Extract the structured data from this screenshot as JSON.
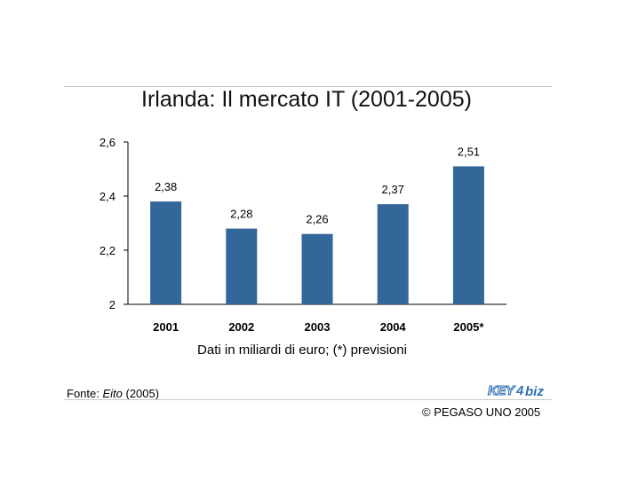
{
  "chart_data": {
    "type": "bar",
    "title": "Irlanda: Il mercato IT (2001-2005)",
    "categories": [
      "2001",
      "2002",
      "2003",
      "2004",
      "2005*"
    ],
    "values": [
      2.38,
      2.28,
      2.26,
      2.37,
      2.51
    ],
    "data_labels": [
      "2,38",
      "2,28",
      "2,26",
      "2,37",
      "2,51"
    ],
    "ylim": [
      2,
      2.6
    ],
    "yticks": [
      2,
      2.2,
      2.4,
      2.6
    ],
    "ytick_labels": [
      "2",
      "2,2",
      "2,4",
      "2,6"
    ],
    "xlabel": "Dati in miliardi di euro; (*) previsioni",
    "ylabel": "",
    "grid": false,
    "bar_color": "#336699"
  },
  "footer": {
    "source_prefix": "Fonte: ",
    "source_name": "Eito",
    "source_year": " (2005)",
    "copyright": "© PEGASO UNO 2005",
    "logo_text": "KEY4biz"
  },
  "colors": {
    "logo": "#2e6fb5",
    "rule": "#c8c8c8"
  }
}
